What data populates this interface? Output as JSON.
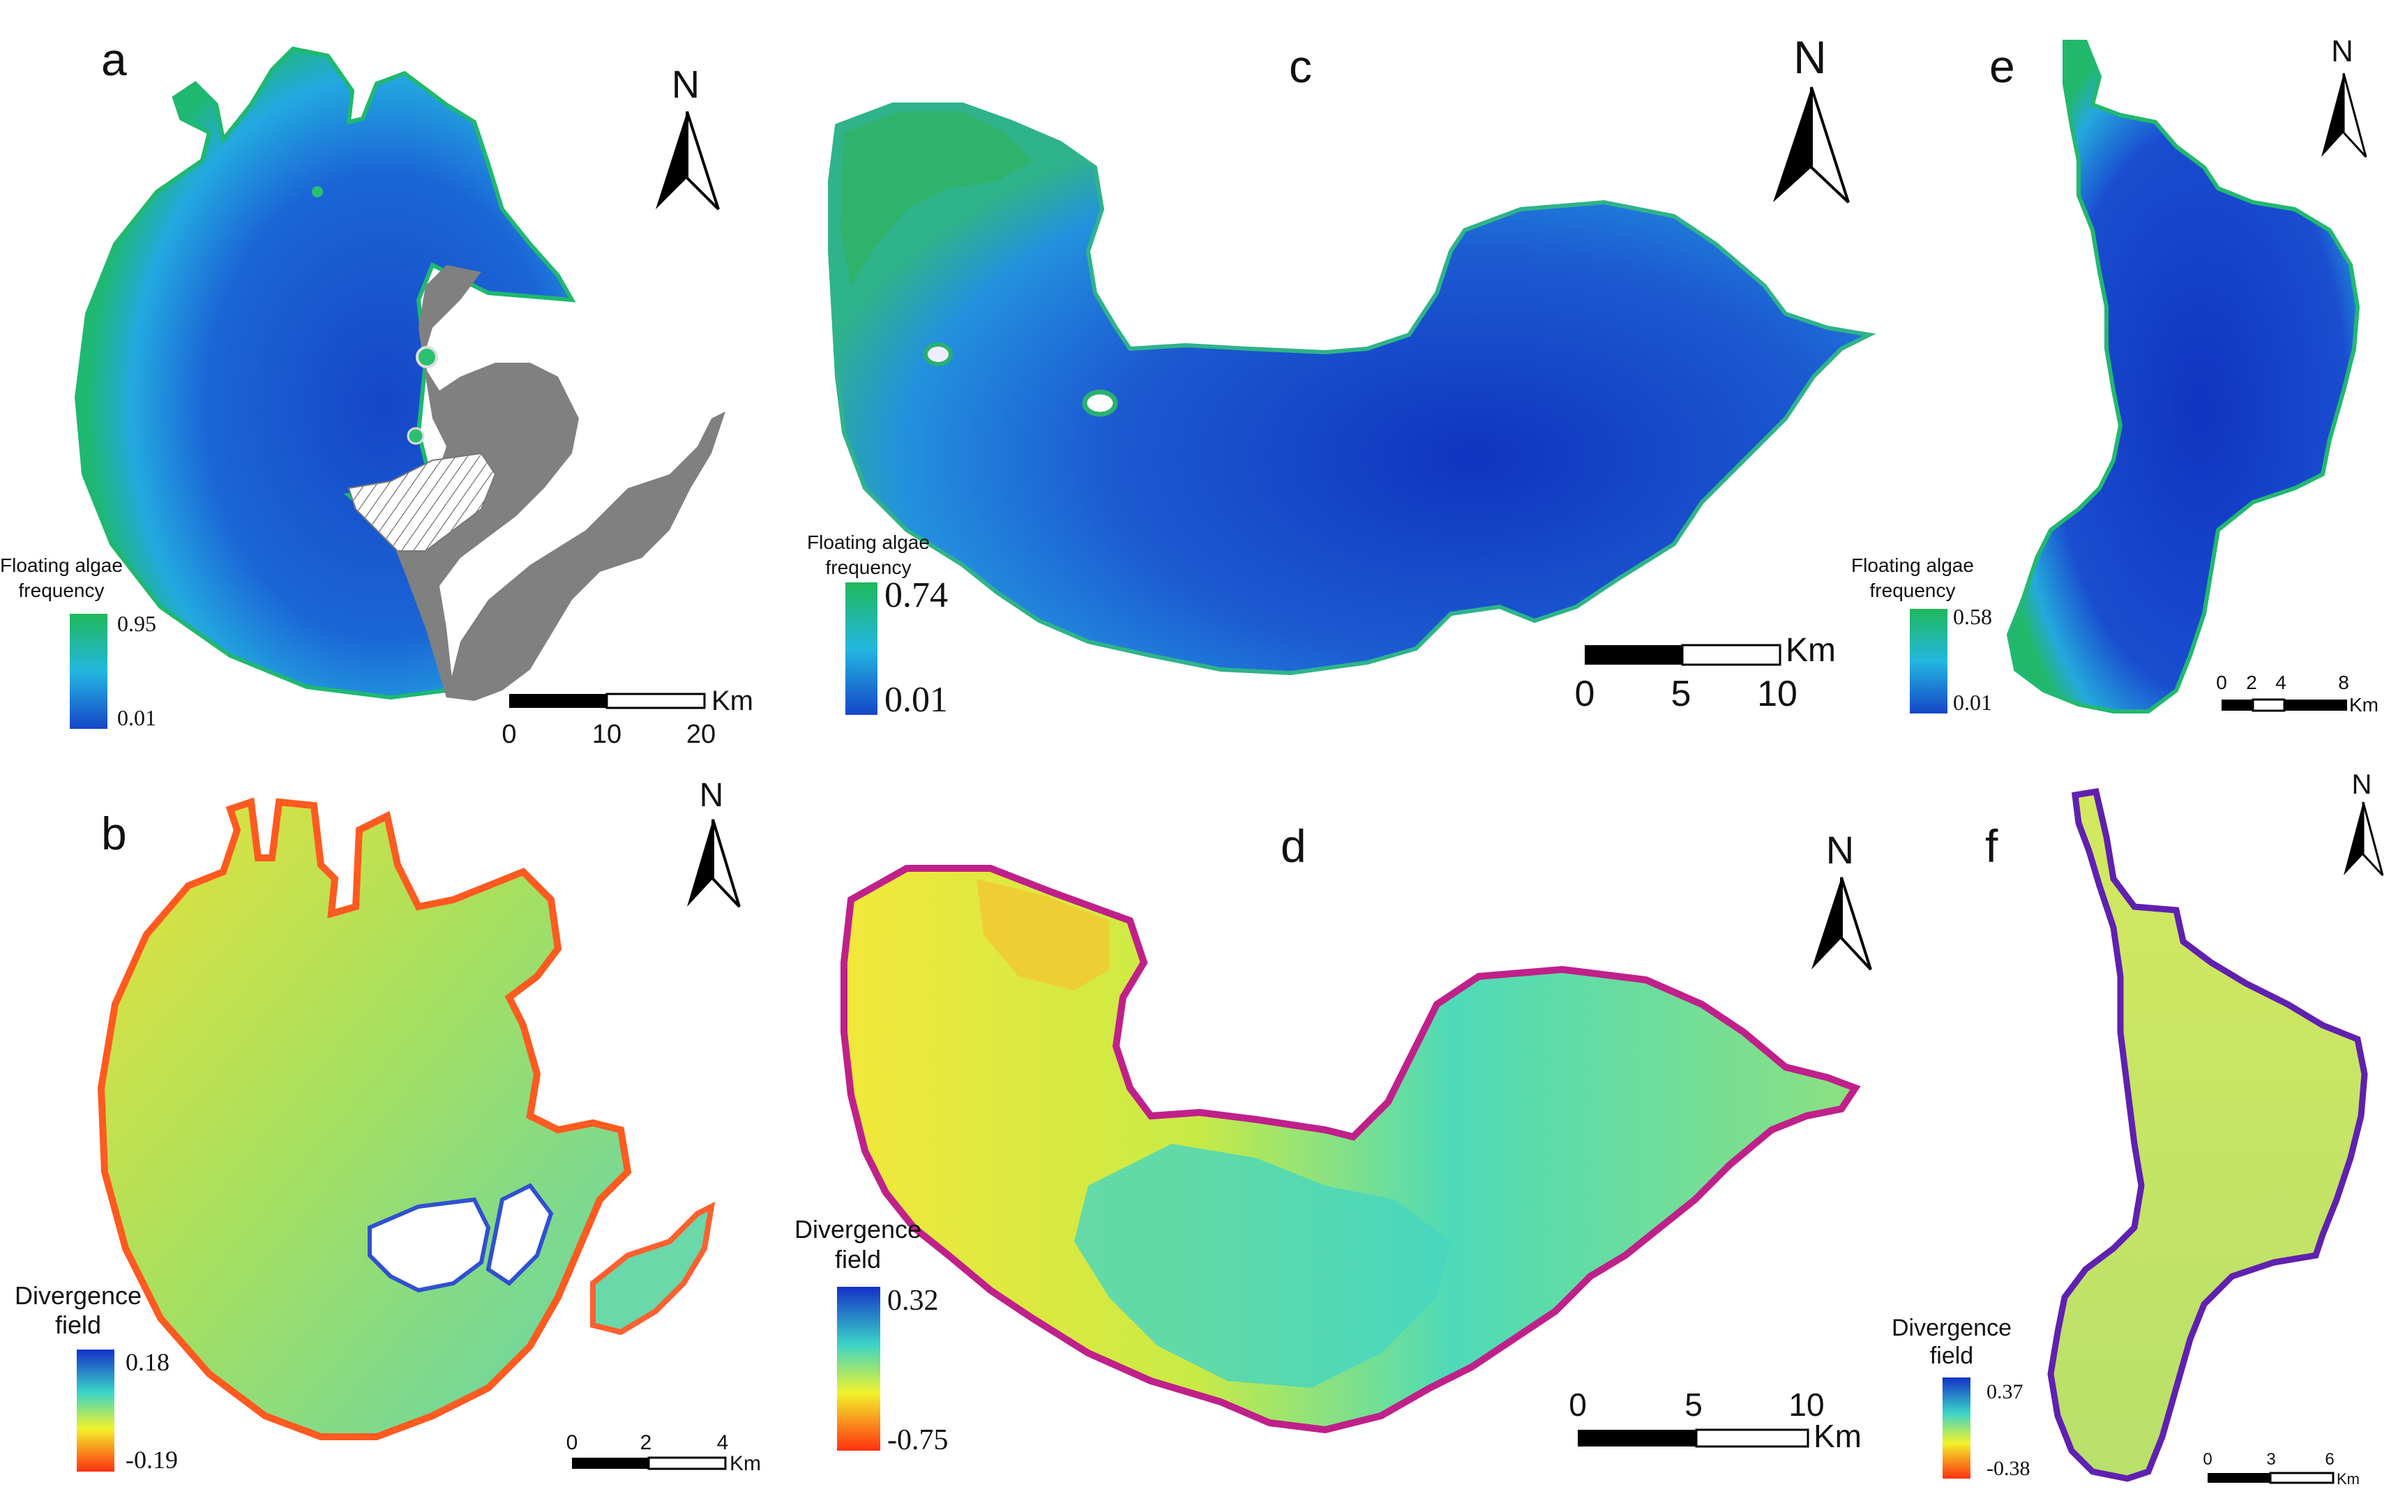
{
  "panels": [
    {
      "id": "a",
      "letter": "a",
      "type": "frequency",
      "legend": {
        "title_line1": "Floating algae",
        "title_line2": "frequency",
        "max": "0.95",
        "min": "0.01"
      },
      "scale": {
        "ticks": [
          "0",
          "10",
          "20"
        ],
        "unit": "Km"
      }
    },
    {
      "id": "b",
      "letter": "b",
      "type": "divergence",
      "legend": {
        "title_line1": "Divergence",
        "title_line2": "field",
        "max": "0.18",
        "min": "-0.19"
      },
      "scale": {
        "ticks": [
          "0",
          "2",
          "4"
        ],
        "unit": "Km"
      }
    },
    {
      "id": "c",
      "letter": "c",
      "type": "frequency",
      "legend": {
        "title_line1": "Floating algae",
        "title_line2": "frequency",
        "max": "0.74",
        "min": "0.01"
      },
      "scale": {
        "ticks": [
          "0",
          "5",
          "10"
        ],
        "unit": "Km"
      }
    },
    {
      "id": "d",
      "letter": "d",
      "type": "divergence",
      "legend": {
        "title_line1": "Divergence",
        "title_line2": "field",
        "max": "0.32",
        "min": "-0.75"
      },
      "scale": {
        "ticks": [
          "0",
          "5",
          "10"
        ],
        "unit": "Km"
      }
    },
    {
      "id": "e",
      "letter": "e",
      "type": "frequency",
      "legend": {
        "title_line1": "Floating algae",
        "title_line2": "frequency",
        "max": "0.58",
        "min": "0.01"
      },
      "scale": {
        "ticks": [
          "0",
          "2",
          "4",
          "8"
        ],
        "unit": "Km"
      }
    },
    {
      "id": "f",
      "letter": "f",
      "type": "divergence",
      "legend": {
        "title_line1": "Divergence",
        "title_line2": "field",
        "max": "0.37",
        "min": "-0.38"
      },
      "scale": {
        "ticks": [
          "0",
          "3",
          "6"
        ],
        "unit": "Km"
      }
    }
  ],
  "north_label": "N",
  "colors": {
    "freq_high": "#1fb85a",
    "freq_mid": "#23b7e0",
    "freq_low": "#1546c8",
    "div_high": "#1430c8",
    "div_mid": "#3ad4c8",
    "div_yellow": "#f2f22a",
    "div_low": "#ff3010",
    "land_gray": "#808080"
  }
}
